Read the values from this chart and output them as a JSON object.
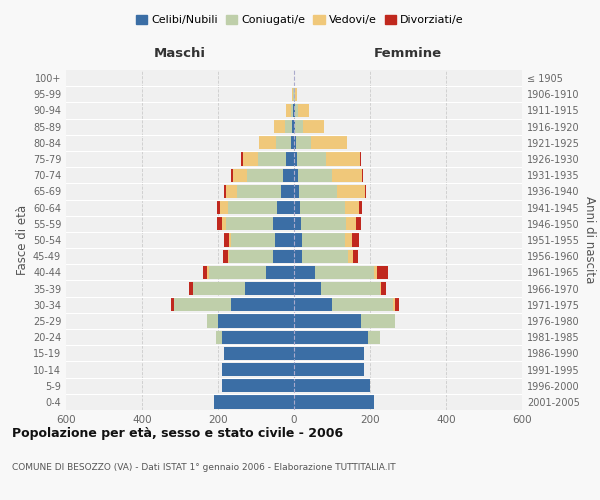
{
  "age_groups": [
    "0-4",
    "5-9",
    "10-14",
    "15-19",
    "20-24",
    "25-29",
    "30-34",
    "35-39",
    "40-44",
    "45-49",
    "50-54",
    "55-59",
    "60-64",
    "65-69",
    "70-74",
    "75-79",
    "80-84",
    "85-89",
    "90-94",
    "95-99",
    "100+"
  ],
  "birth_years": [
    "2001-2005",
    "1996-2000",
    "1991-1995",
    "1986-1990",
    "1981-1985",
    "1976-1980",
    "1971-1975",
    "1966-1970",
    "1961-1965",
    "1956-1960",
    "1951-1955",
    "1946-1950",
    "1941-1945",
    "1936-1940",
    "1931-1935",
    "1926-1930",
    "1921-1925",
    "1916-1920",
    "1911-1915",
    "1906-1910",
    "≤ 1905"
  ],
  "colors": {
    "celibe": "#3b6ea5",
    "coniugato": "#bfcfaa",
    "vedovo": "#f0c87a",
    "divorziato": "#c0281e"
  },
  "males": {
    "celibe": [
      210,
      190,
      190,
      185,
      190,
      200,
      165,
      130,
      75,
      55,
      50,
      55,
      45,
      35,
      30,
      20,
      8,
      5,
      2,
      1,
      0
    ],
    "coniugato": [
      0,
      0,
      0,
      0,
      15,
      30,
      150,
      135,
      150,
      115,
      115,
      125,
      130,
      115,
      95,
      75,
      40,
      18,
      5,
      2,
      0
    ],
    "vedovo": [
      0,
      0,
      0,
      0,
      0,
      0,
      2,
      2,
      5,
      5,
      5,
      10,
      20,
      30,
      35,
      40,
      45,
      30,
      15,
      3,
      0
    ],
    "divorziato": [
      0,
      0,
      0,
      0,
      0,
      0,
      8,
      10,
      10,
      12,
      14,
      12,
      8,
      5,
      5,
      5,
      0,
      0,
      0,
      0,
      0
    ]
  },
  "females": {
    "nubile": [
      210,
      200,
      185,
      185,
      195,
      175,
      100,
      70,
      55,
      22,
      20,
      18,
      15,
      12,
      10,
      8,
      5,
      3,
      2,
      1,
      0
    ],
    "coniugata": [
      0,
      0,
      0,
      0,
      30,
      90,
      160,
      155,
      155,
      120,
      115,
      120,
      120,
      100,
      90,
      75,
      40,
      20,
      8,
      2,
      0
    ],
    "vedova": [
      0,
      0,
      0,
      0,
      0,
      0,
      5,
      5,
      8,
      12,
      18,
      25,
      35,
      75,
      80,
      90,
      95,
      55,
      30,
      5,
      0
    ],
    "divorziata": [
      0,
      0,
      0,
      0,
      0,
      0,
      10,
      12,
      30,
      15,
      18,
      12,
      8,
      3,
      2,
      3,
      0,
      0,
      0,
      0,
      0
    ]
  },
  "title": "Popolazione per età, sesso e stato civile - 2006",
  "subtitle": "COMUNE DI BESOZZO (VA) - Dati ISTAT 1° gennaio 2006 - Elaborazione TUTTITALIA.IT",
  "xlabel_left": "Maschi",
  "xlabel_right": "Femmine",
  "ylabel_left": "Fasce di età",
  "ylabel_right": "Anni di nascita",
  "legend_labels": [
    "Celibi/Nubili",
    "Coniugati/e",
    "Vedovi/e",
    "Divorziati/e"
  ],
  "xlim": 600,
  "bg_color": "#f8f8f8",
  "plot_bg": "#f0f0f0"
}
